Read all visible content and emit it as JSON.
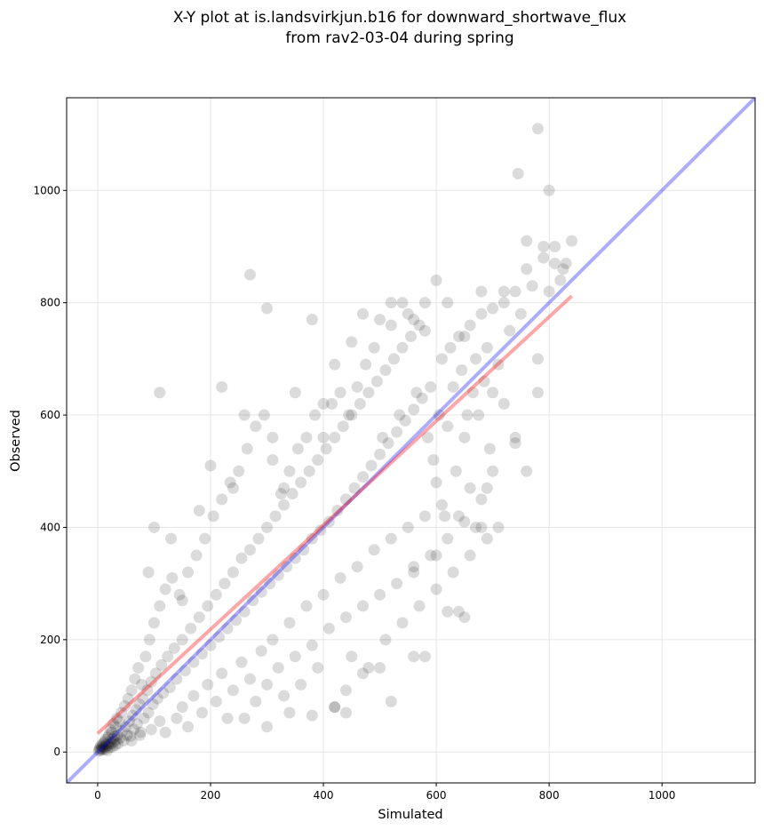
{
  "chart_data": {
    "type": "scatter",
    "title_line1": "X-Y plot at is.landsvirkjun.b16 for downward_shortwave_flux",
    "title_line2": "from rav2-03-04 during spring",
    "xlabel": "Simulated",
    "ylabel": "Observed",
    "xlim": [
      -55,
      1165
    ],
    "ylim": [
      -55,
      1165
    ],
    "xticks": [
      0,
      200,
      400,
      600,
      800,
      1000
    ],
    "yticks": [
      0,
      200,
      400,
      600,
      800,
      1000
    ],
    "grid": true,
    "colors": {
      "points": "#000000",
      "identity_line": "#0000ff",
      "fit_line": "#ff0000"
    },
    "identity_line": {
      "x": [
        -55,
        1165
      ],
      "y": [
        -55,
        1165
      ]
    },
    "fit_line": {
      "x": [
        0,
        840
      ],
      "y": [
        33,
        812
      ]
    },
    "points": [
      [
        2,
        2
      ],
      [
        3,
        5
      ],
      [
        4,
        8
      ],
      [
        5,
        3
      ],
      [
        6,
        12
      ],
      [
        7,
        6
      ],
      [
        8,
        10
      ],
      [
        9,
        4
      ],
      [
        10,
        15
      ],
      [
        11,
        8
      ],
      [
        12,
        18
      ],
      [
        13,
        5
      ],
      [
        14,
        22
      ],
      [
        15,
        10
      ],
      [
        16,
        14
      ],
      [
        17,
        3
      ],
      [
        18,
        26
      ],
      [
        19,
        12
      ],
      [
        20,
        30
      ],
      [
        21,
        8
      ],
      [
        22,
        18
      ],
      [
        23,
        40
      ],
      [
        24,
        15
      ],
      [
        25,
        35
      ],
      [
        26,
        9
      ],
      [
        27,
        24
      ],
      [
        28,
        50
      ],
      [
        29,
        18
      ],
      [
        30,
        28
      ],
      [
        31,
        12
      ],
      [
        32,
        45
      ],
      [
        33,
        22
      ],
      [
        34,
        60
      ],
      [
        35,
        30
      ],
      [
        36,
        15
      ],
      [
        38,
        55
      ],
      [
        40,
        25
      ],
      [
        42,
        70
      ],
      [
        44,
        38
      ],
      [
        46,
        20
      ],
      [
        48,
        82
      ],
      [
        50,
        45
      ],
      [
        52,
        30
      ],
      [
        54,
        95
      ],
      [
        56,
        55
      ],
      [
        58,
        28
      ],
      [
        60,
        110
      ],
      [
        62,
        65
      ],
      [
        64,
        40
      ],
      [
        66,
        130
      ],
      [
        68,
        75
      ],
      [
        70,
        50
      ],
      [
        72,
        150
      ],
      [
        74,
        85
      ],
      [
        76,
        35
      ],
      [
        78,
        120
      ],
      [
        80,
        95
      ],
      [
        82,
        60
      ],
      [
        85,
        170
      ],
      [
        88,
        110
      ],
      [
        90,
        70
      ],
      [
        92,
        200
      ],
      [
        95,
        125
      ],
      [
        98,
        85
      ],
      [
        100,
        230
      ],
      [
        103,
        140
      ],
      [
        106,
        95
      ],
      [
        110,
        260
      ],
      [
        113,
        155
      ],
      [
        116,
        105
      ],
      [
        120,
        290
      ],
      [
        124,
        170
      ],
      [
        128,
        115
      ],
      [
        132,
        310
      ],
      [
        136,
        185
      ],
      [
        140,
        130
      ],
      [
        145,
        280
      ],
      [
        150,
        200
      ],
      [
        155,
        145
      ],
      [
        160,
        320
      ],
      [
        165,
        220
      ],
      [
        170,
        160
      ],
      [
        175,
        350
      ],
      [
        180,
        240
      ],
      [
        185,
        175
      ],
      [
        190,
        380
      ],
      [
        195,
        260
      ],
      [
        200,
        190
      ],
      [
        205,
        420
      ],
      [
        210,
        280
      ],
      [
        215,
        205
      ],
      [
        220,
        450
      ],
      [
        225,
        300
      ],
      [
        230,
        220
      ],
      [
        235,
        480
      ],
      [
        240,
        320
      ],
      [
        245,
        235
      ],
      [
        250,
        500
      ],
      [
        255,
        345
      ],
      [
        260,
        250
      ],
      [
        265,
        540
      ],
      [
        270,
        360
      ],
      [
        275,
        270
      ],
      [
        280,
        580
      ],
      [
        285,
        380
      ],
      [
        290,
        285
      ],
      [
        295,
        600
      ],
      [
        300,
        400
      ],
      [
        305,
        300
      ],
      [
        310,
        520
      ],
      [
        315,
        420
      ],
      [
        320,
        315
      ],
      [
        325,
        460
      ],
      [
        330,
        440
      ],
      [
        335,
        330
      ],
      [
        340,
        500
      ],
      [
        345,
        460
      ],
      [
        350,
        345
      ],
      [
        355,
        540
      ],
      [
        360,
        480
      ],
      [
        365,
        360
      ],
      [
        370,
        560
      ],
      [
        375,
        500
      ],
      [
        380,
        380
      ],
      [
        385,
        600
      ],
      [
        390,
        520
      ],
      [
        395,
        395
      ],
      [
        400,
        560
      ],
      [
        405,
        540
      ],
      [
        410,
        410
      ],
      [
        415,
        620
      ],
      [
        420,
        560
      ],
      [
        425,
        430
      ],
      [
        430,
        640
      ],
      [
        435,
        580
      ],
      [
        440,
        450
      ],
      [
        445,
        600
      ],
      [
        450,
        600
      ],
      [
        455,
        470
      ],
      [
        460,
        650
      ],
      [
        465,
        620
      ],
      [
        470,
        490
      ],
      [
        475,
        690
      ],
      [
        480,
        640
      ],
      [
        485,
        510
      ],
      [
        490,
        720
      ],
      [
        495,
        660
      ],
      [
        500,
        530
      ],
      [
        505,
        560
      ],
      [
        510,
        680
      ],
      [
        515,
        550
      ],
      [
        520,
        760
      ],
      [
        525,
        700
      ],
      [
        530,
        570
      ],
      [
        535,
        600
      ],
      [
        540,
        720
      ],
      [
        545,
        590
      ],
      [
        550,
        780
      ],
      [
        555,
        740
      ],
      [
        560,
        610
      ],
      [
        565,
        640
      ],
      [
        570,
        760
      ],
      [
        575,
        630
      ],
      [
        580,
        800
      ],
      [
        585,
        560
      ],
      [
        590,
        650
      ],
      [
        595,
        520
      ],
      [
        600,
        480
      ],
      [
        605,
        600
      ],
      [
        610,
        700
      ],
      [
        615,
        420
      ],
      [
        620,
        580
      ],
      [
        625,
        720
      ],
      [
        630,
        650
      ],
      [
        635,
        500
      ],
      [
        640,
        740
      ],
      [
        645,
        680
      ],
      [
        650,
        560
      ],
      [
        655,
        600
      ],
      [
        660,
        760
      ],
      [
        665,
        640
      ],
      [
        670,
        700
      ],
      [
        675,
        600
      ],
      [
        680,
        780
      ],
      [
        685,
        660
      ],
      [
        690,
        720
      ],
      [
        695,
        540
      ],
      [
        700,
        640
      ],
      [
        710,
        690
      ],
      [
        720,
        800
      ],
      [
        730,
        750
      ],
      [
        740,
        560
      ],
      [
        750,
        780
      ],
      [
        760,
        860
      ],
      [
        770,
        830
      ],
      [
        780,
        700
      ],
      [
        790,
        880
      ],
      [
        800,
        820
      ],
      [
        810,
        900
      ],
      [
        820,
        840
      ],
      [
        830,
        870
      ],
      [
        60,
        20
      ],
      [
        75,
        30
      ],
      [
        95,
        40
      ],
      [
        110,
        55
      ],
      [
        120,
        35
      ],
      [
        140,
        60
      ],
      [
        150,
        80
      ],
      [
        160,
        45
      ],
      [
        170,
        100
      ],
      [
        185,
        70
      ],
      [
        195,
        120
      ],
      [
        210,
        90
      ],
      [
        220,
        140
      ],
      [
        230,
        60
      ],
      [
        240,
        110
      ],
      [
        255,
        160
      ],
      [
        270,
        130
      ],
      [
        280,
        90
      ],
      [
        290,
        180
      ],
      [
        300,
        120
      ],
      [
        310,
        200
      ],
      [
        320,
        150
      ],
      [
        330,
        100
      ],
      [
        340,
        230
      ],
      [
        350,
        170
      ],
      [
        360,
        120
      ],
      [
        370,
        260
      ],
      [
        380,
        190
      ],
      [
        390,
        150
      ],
      [
        400,
        280
      ],
      [
        410,
        220
      ],
      [
        420,
        80
      ],
      [
        430,
        310
      ],
      [
        440,
        240
      ],
      [
        450,
        170
      ],
      [
        460,
        330
      ],
      [
        470,
        260
      ],
      [
        480,
        150
      ],
      [
        490,
        360
      ],
      [
        500,
        280
      ],
      [
        510,
        200
      ],
      [
        520,
        380
      ],
      [
        530,
        300
      ],
      [
        540,
        230
      ],
      [
        550,
        400
      ],
      [
        560,
        320
      ],
      [
        570,
        260
      ],
      [
        580,
        420
      ],
      [
        590,
        350
      ],
      [
        600,
        290
      ],
      [
        610,
        440
      ],
      [
        620,
        380
      ],
      [
        630,
        320
      ],
      [
        640,
        250
      ],
      [
        650,
        410
      ],
      [
        660,
        350
      ],
      [
        670,
        400
      ],
      [
        680,
        450
      ],
      [
        690,
        380
      ],
      [
        700,
        500
      ],
      [
        90,
        320
      ],
      [
        100,
        400
      ],
      [
        110,
        640
      ],
      [
        130,
        380
      ],
      [
        150,
        270
      ],
      [
        180,
        430
      ],
      [
        200,
        510
      ],
      [
        220,
        650
      ],
      [
        240,
        470
      ],
      [
        260,
        600
      ],
      [
        270,
        850
      ],
      [
        300,
        790
      ],
      [
        310,
        560
      ],
      [
        330,
        470
      ],
      [
        350,
        640
      ],
      [
        380,
        770
      ],
      [
        400,
        620
      ],
      [
        420,
        690
      ],
      [
        450,
        730
      ],
      [
        470,
        780
      ],
      [
        500,
        770
      ],
      [
        520,
        800
      ],
      [
        540,
        800
      ],
      [
        560,
        770
      ],
      [
        580,
        750
      ],
      [
        600,
        840
      ],
      [
        620,
        800
      ],
      [
        650,
        740
      ],
      [
        680,
        820
      ],
      [
        700,
        790
      ],
      [
        720,
        820
      ],
      [
        740,
        820
      ],
      [
        760,
        910
      ],
      [
        780,
        1110
      ],
      [
        790,
        900
      ],
      [
        800,
        1000
      ],
      [
        745,
        1030
      ],
      [
        810,
        870
      ],
      [
        840,
        910
      ],
      [
        825,
        860
      ],
      [
        440,
        70
      ],
      [
        420,
        80
      ],
      [
        380,
        65
      ],
      [
        340,
        70
      ],
      [
        300,
        45
      ],
      [
        260,
        60
      ],
      [
        520,
        90
      ],
      [
        500,
        150
      ],
      [
        470,
        140
      ],
      [
        440,
        110
      ],
      [
        560,
        170
      ],
      [
        580,
        170
      ],
      [
        620,
        250
      ],
      [
        650,
        240
      ],
      [
        600,
        350
      ],
      [
        690,
        470
      ],
      [
        720,
        620
      ],
      [
        740,
        550
      ],
      [
        760,
        500
      ],
      [
        780,
        640
      ],
      [
        710,
        400
      ],
      [
        680,
        400
      ],
      [
        560,
        330
      ],
      [
        640,
        420
      ],
      [
        660,
        470
      ]
    ]
  }
}
